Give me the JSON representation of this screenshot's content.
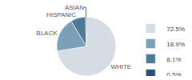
{
  "chart_data": {
    "type": "pie",
    "categories": [
      "WHITE",
      "BLACK",
      "HISPANIC",
      "ASIAN"
    ],
    "values": [
      72.5,
      18.9,
      8.1,
      0.5
    ],
    "value_labels": [
      "72.5%",
      "18.9%",
      "8.1%",
      "0.5%"
    ],
    "colors": [
      "#d6dce4",
      "#7b9fb5",
      "#4e7a96",
      "#2b4f6e"
    ],
    "legend": "right"
  }
}
